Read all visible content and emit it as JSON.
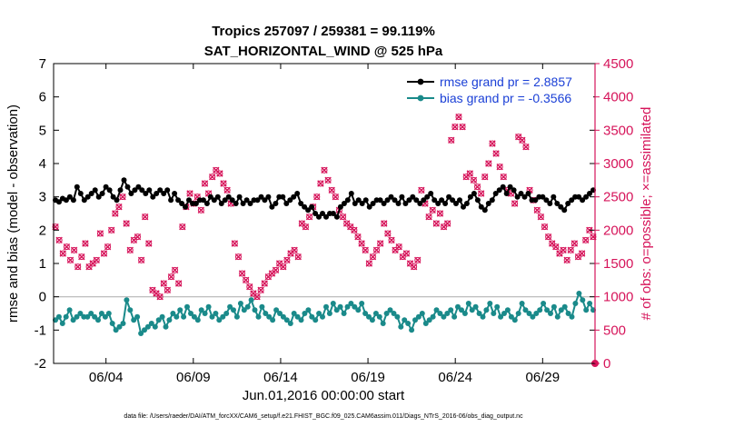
{
  "chart_data": {
    "type": "line",
    "title_line1": "Tropics 257097 / 259381 = 99.119%",
    "title_line2": "SAT_HORIZONTAL_WIND @ 525 hPa",
    "xlabel": "Jun.01,2016 00:00:00 start",
    "ylabel": "rmse and bias (model - observation)",
    "ylabel_right": "# of obs: o=possible; ×=assimilated",
    "footer": "data file: /Users/raeder/DAI/ATM_forcXX/CAM6_setup/f.e21.FHIST_BGC.f09_025.CAM6assim.011/Diags_NTrS_2016-06/obs_diag_output.nc",
    "xlim": [
      1,
      32
    ],
    "x_ticks": [
      4,
      9,
      14,
      19,
      24,
      29
    ],
    "x_tick_labels": [
      "06/04",
      "06/09",
      "06/14",
      "06/19",
      "06/24",
      "06/29"
    ],
    "ylim": [
      -2,
      7
    ],
    "y_ticks": [
      -2,
      -1,
      0,
      1,
      2,
      3,
      4,
      5,
      6,
      7
    ],
    "y_tick_labels": [
      "-2",
      "-1",
      "0",
      "1",
      "2",
      "3",
      "4",
      "5",
      "6",
      "7"
    ],
    "ylim_right": [
      0,
      4500
    ],
    "y_ticks_right": [
      0,
      500,
      1000,
      1500,
      2000,
      2500,
      3000,
      3500,
      4000,
      4500
    ],
    "y_tick_labels_right": [
      "0",
      "500",
      "1000",
      "1500",
      "2000",
      "2500",
      "3000",
      "3500",
      "4000",
      "4500"
    ],
    "legend_location": "top-right",
    "colors": {
      "rmse": "#000000",
      "bias": "#1a8a8a",
      "obs": "#d6145a",
      "legend_text": "#1a3fd6",
      "zero_line": "#b4b4b4"
    },
    "series": [
      {
        "name": "rmse grand pr = 2.8857",
        "values": [
          2.9,
          2.85,
          2.95,
          2.9,
          3.0,
          2.9,
          3.3,
          3.1,
          2.9,
          3.0,
          3.1,
          3.2,
          3.0,
          3.1,
          3.3,
          3.2,
          3.0,
          2.9,
          3.2,
          3.5,
          3.3,
          3.1,
          3.2,
          3.3,
          3.2,
          3.1,
          3.2,
          3.0,
          3.1,
          3.2,
          3.1,
          3.2,
          2.9,
          3.1,
          2.9,
          2.8,
          2.7,
          2.9,
          2.8,
          2.8,
          2.9,
          2.9,
          2.8,
          3.0,
          2.9,
          3.0,
          2.8,
          2.9,
          3.0,
          2.9,
          2.8,
          3.0,
          2.8,
          2.9,
          2.8,
          2.9,
          2.9,
          3.0,
          2.9,
          3.0,
          2.7,
          2.8,
          3.0,
          3.0,
          2.8,
          2.9,
          3.0,
          3.1,
          2.8,
          2.7,
          2.6,
          2.7,
          2.5,
          2.4,
          2.5,
          2.4,
          2.5,
          2.5,
          2.4,
          2.7,
          2.8,
          2.9,
          3.1,
          2.8,
          2.9,
          2.8,
          2.9,
          2.7,
          2.8,
          2.9,
          2.9,
          2.8,
          2.9,
          3.0,
          2.9,
          2.8,
          3.0,
          2.8,
          2.9,
          3.0,
          2.9,
          2.8,
          2.9,
          3.0,
          3.1,
          2.9,
          2.8,
          2.9,
          2.8,
          3.0,
          2.9,
          2.8,
          2.9,
          2.7,
          2.8,
          3.0,
          3.1,
          2.9,
          2.7,
          2.6,
          2.8,
          2.9,
          3.1,
          3.2,
          3.3,
          3.1,
          3.3,
          3.2,
          3.0,
          3.1,
          3.0,
          3.1,
          2.9,
          2.9,
          3.0,
          3.0,
          2.9,
          2.8,
          3.0,
          2.8,
          2.7,
          2.6,
          2.8,
          2.9,
          3.0,
          3.0,
          2.9,
          3.0,
          3.1,
          3.2
        ]
      },
      {
        "name": "bias grand pr = -0.3566",
        "values": [
          -0.7,
          -0.6,
          -0.8,
          -0.6,
          -0.4,
          -0.7,
          -0.6,
          -0.5,
          -0.6,
          -0.6,
          -0.5,
          -0.6,
          -0.7,
          -0.5,
          -0.6,
          -0.5,
          -0.8,
          -1.0,
          -0.9,
          -0.8,
          -0.1,
          -0.4,
          -0.7,
          -0.6,
          -1.1,
          -1.0,
          -0.9,
          -0.8,
          -0.9,
          -0.7,
          -0.6,
          -0.9,
          -0.7,
          -0.5,
          -0.6,
          -0.4,
          -0.6,
          -0.3,
          -0.5,
          -0.6,
          -0.7,
          -0.4,
          -0.5,
          -0.3,
          -0.6,
          -0.5,
          -0.7,
          -0.6,
          -0.5,
          -0.3,
          -0.4,
          -0.6,
          -0.2,
          -0.4,
          -0.3,
          -0.1,
          -0.4,
          -0.6,
          -0.3,
          -0.5,
          -0.6,
          -0.7,
          -0.4,
          -0.5,
          -0.6,
          -0.7,
          -0.8,
          -0.5,
          -0.6,
          -0.7,
          -0.5,
          -0.4,
          -0.6,
          -0.7,
          -0.5,
          -0.6,
          -0.3,
          -0.5,
          -0.2,
          -0.4,
          -0.3,
          -0.5,
          -0.3,
          -0.2,
          -0.3,
          -0.4,
          -0.2,
          -0.5,
          -0.6,
          -0.7,
          -0.5,
          -0.6,
          -0.8,
          -0.5,
          -0.4,
          -0.5,
          -0.6,
          -0.9,
          -0.7,
          -0.8,
          -1.0,
          -0.7,
          -0.6,
          -0.5,
          -0.8,
          -0.7,
          -0.6,
          -0.4,
          -0.5,
          -0.6,
          -0.5,
          -0.4,
          -0.6,
          -0.3,
          -0.4,
          -0.5,
          -0.2,
          -0.4,
          -0.3,
          -0.5,
          -0.6,
          -0.4,
          -0.2,
          -0.5,
          -0.3,
          -0.6,
          -0.5,
          -0.4,
          -0.6,
          -0.7,
          -0.5,
          -0.2,
          -0.4,
          -0.5,
          -0.6,
          -0.5,
          -0.4,
          -0.2,
          -0.4,
          -0.5,
          -0.3,
          -0.6,
          -0.4,
          -0.3,
          -0.5,
          -0.6,
          -0.2,
          0.1,
          -0.1,
          -0.4,
          -0.2,
          -0.4
        ]
      }
    ],
    "obs_series": {
      "name": "# of obs",
      "values": [
        2050,
        1850,
        1650,
        1750,
        1550,
        1700,
        1450,
        1600,
        1800,
        1450,
        1500,
        1550,
        1950,
        1650,
        1750,
        2000,
        2250,
        2350,
        2500,
        2100,
        1700,
        1850,
        1900,
        1550,
        2200,
        1800,
        1100,
        1050,
        1000,
        1200,
        1100,
        1300,
        1400,
        1200,
        2050,
        2350,
        2550,
        2400,
        2500,
        2300,
        2700,
        2550,
        2800,
        2900,
        2850,
        2700,
        2600,
        2400,
        1800,
        1600,
        1350,
        1250,
        1150,
        1050,
        1000,
        1100,
        1200,
        1300,
        1350,
        1400,
        1500,
        1450,
        1550,
        1650,
        1700,
        1600,
        2100,
        2050,
        2200,
        2350,
        2500,
        2700,
        2900,
        2750,
        2600,
        2500,
        2300,
        2200,
        2100,
        2050,
        2000,
        1900,
        1800,
        1700,
        1500,
        1600,
        1700,
        1800,
        2100,
        1950,
        1850,
        1700,
        1750,
        1600,
        1650,
        1500,
        1450,
        1550,
        2600,
        2400,
        2200,
        2300,
        2100,
        2250,
        2050,
        2100,
        3350,
        3550,
        3700,
        3550,
        2800,
        2850,
        2750,
        2650,
        2550,
        2800,
        3000,
        3300,
        3150,
        2950,
        2800,
        2600,
        2550,
        2400,
        3400,
        3350,
        3250,
        2600,
        2450,
        2300,
        2200,
        2050,
        1900,
        1800,
        1750,
        1650,
        1700,
        1550,
        1700,
        1800,
        1600,
        1650,
        1850,
        2000,
        1900
      ]
    }
  }
}
